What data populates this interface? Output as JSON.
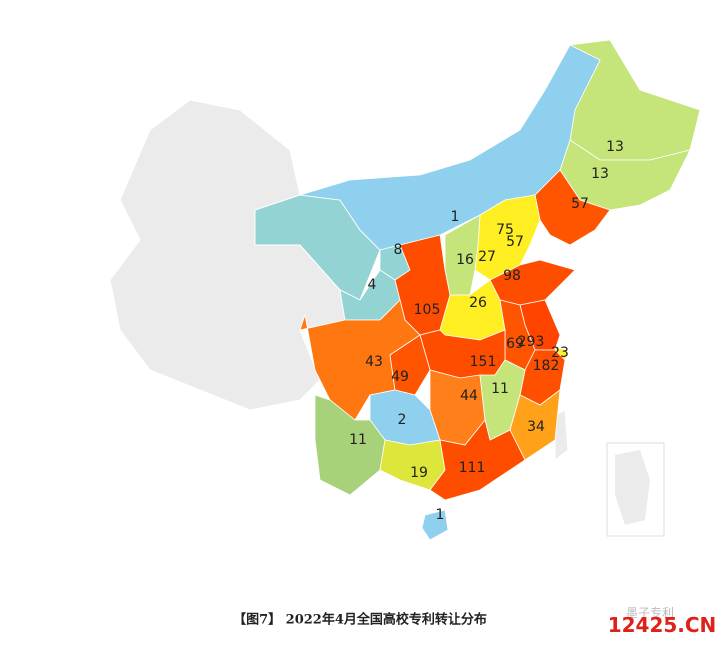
{
  "regions": [
    {
      "value": 13,
      "color": "#c5e47a"
    },
    {
      "value": 13,
      "color": "#c5e47a"
    },
    {
      "value": 57,
      "color": "#ff5500"
    },
    {
      "value": 1,
      "color": "#8fd0ee"
    },
    {
      "value": 75,
      "color": "#ff4400"
    },
    {
      "value": 57,
      "color": "#ff5500"
    },
    {
      "value": 27,
      "color": "#ffee22"
    },
    {
      "value": 16,
      "color": "#c5e47a"
    },
    {
      "value": 98,
      "color": "#ff4d00"
    },
    {
      "value": 8,
      "color": "#93d3d3"
    },
    {
      "value": 4,
      "color": "#93d3d3"
    },
    {
      "value": 105,
      "color": "#ff4d00"
    },
    {
      "value": 26,
      "color": "#ffee22"
    },
    {
      "value": 293,
      "color": "#ff4400"
    },
    {
      "value": 69,
      "color": "#ff5500"
    },
    {
      "value": 23,
      "color": "#ffee22"
    },
    {
      "value": 151,
      "color": "#ff4d00"
    },
    {
      "value": 182,
      "color": "#ff5000"
    },
    {
      "value": 43,
      "color": "#ff7711"
    },
    {
      "value": 49,
      "color": "#ff5500"
    },
    {
      "value": 44,
      "color": "#ff7f1a"
    },
    {
      "value": 11,
      "color": "#c5e47a"
    },
    {
      "value": 2,
      "color": "#8fd0ee"
    },
    {
      "value": 34,
      "color": "#ffa21a"
    },
    {
      "value": 11,
      "color": "#a8d27a"
    },
    {
      "value": 19,
      "color": "#dde63a"
    },
    {
      "value": 111,
      "color": "#ff4d00"
    },
    {
      "value": 1,
      "color": "#8fd0ee"
    }
  ],
  "caption": "【图7】 2022年4月全国高校专利转让分布",
  "watermark": "12425.CN",
  "watermark_text": "墨子专利"
}
